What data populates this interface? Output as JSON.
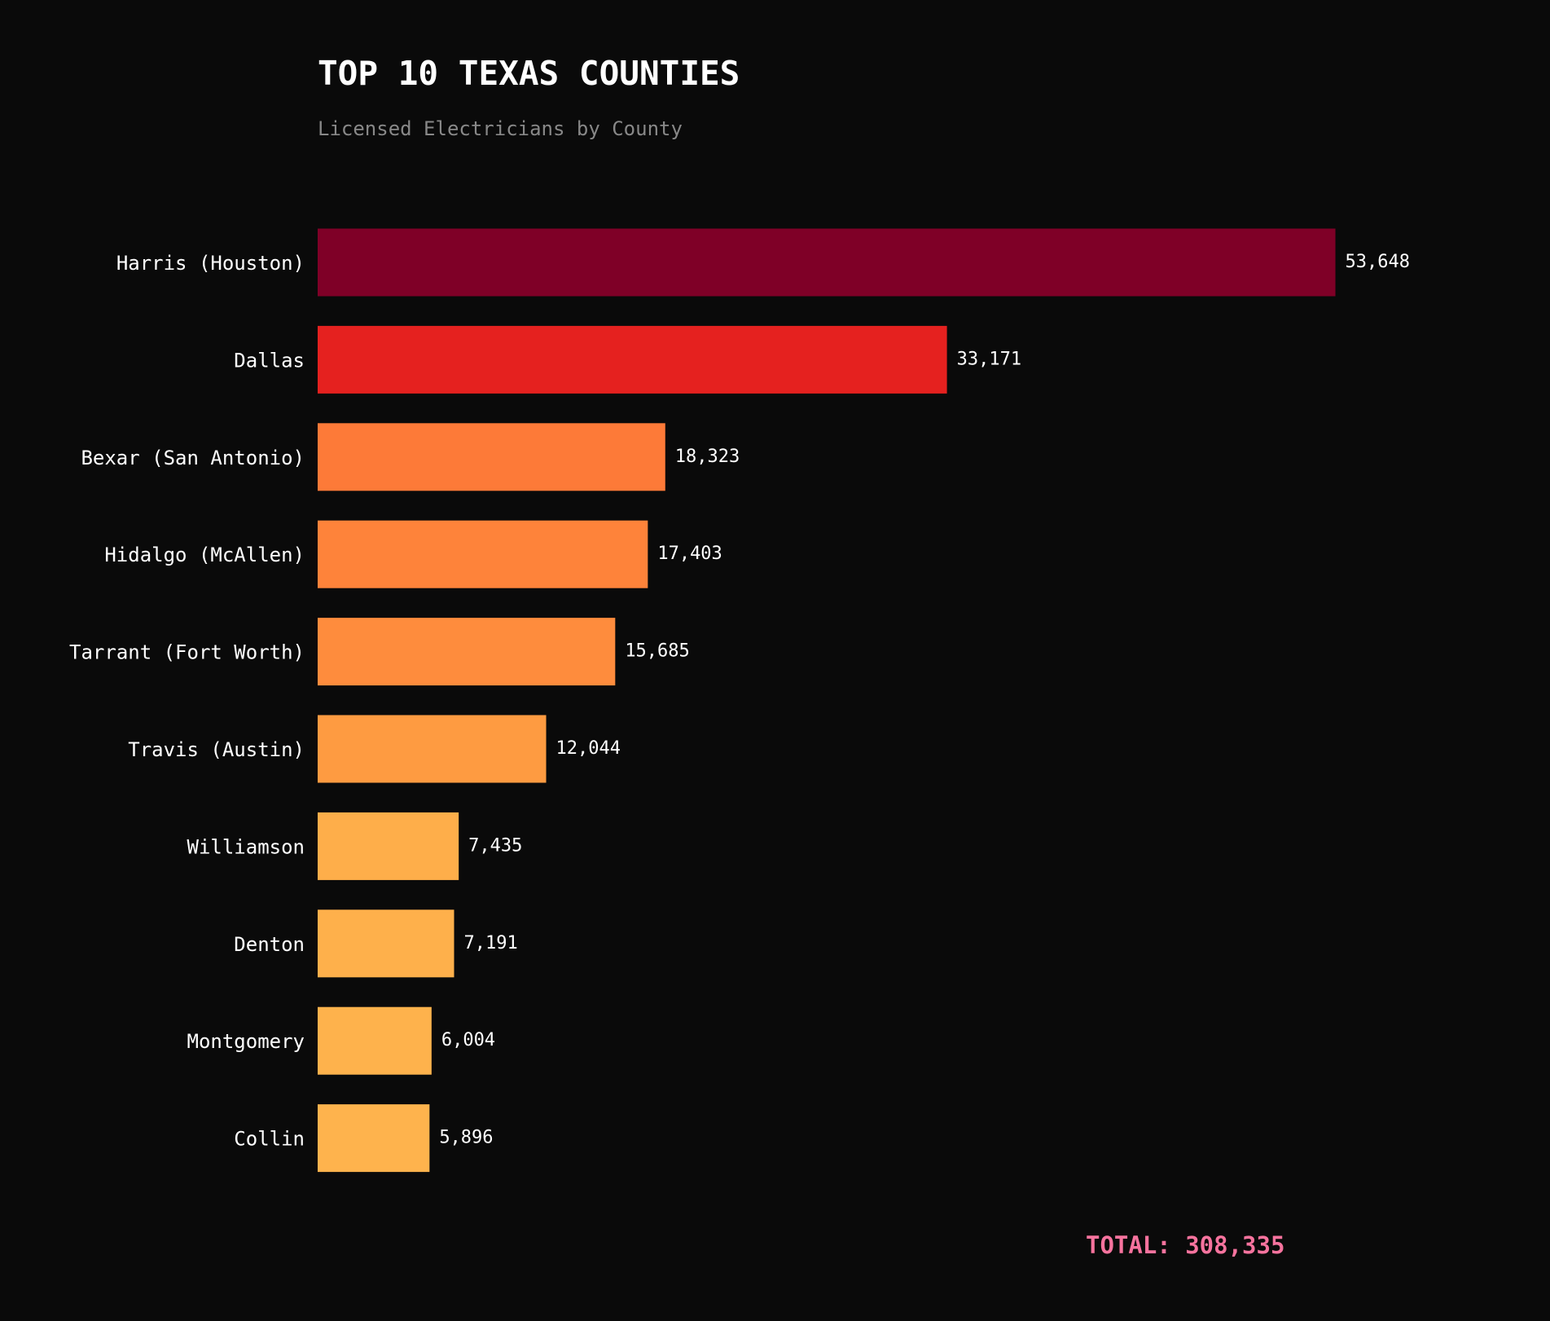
{
  "chart_data": {
    "type": "barh",
    "title": "TOP 10 TEXAS COUNTIES",
    "subtitle": "Licensed Electricians by County",
    "annotation": "TOTAL: 308,335",
    "categories": [
      "Harris (Houston)",
      "Dallas",
      "Bexar (San Antonio)",
      "Hidalgo (McAllen)",
      "Tarrant (Fort Worth)",
      "Travis (Austin)",
      "Williamson",
      "Denton",
      "Montgomery",
      "Collin"
    ],
    "values": [
      53648,
      33171,
      18323,
      17403,
      15685,
      12044,
      7435,
      7191,
      6004,
      5896
    ],
    "value_labels": [
      "53,648",
      "33,171",
      "18,323",
      "17,403",
      "15,685",
      "12,044",
      "7,435",
      "7,191",
      "6,004",
      "5,896"
    ],
    "colors": [
      "#7f0027",
      "#e5211f",
      "#fd7a38",
      "#fe833a",
      "#fe8c3d",
      "#fe9b41",
      "#feae4a",
      "#feb04b",
      "#feb24c",
      "#feb34d"
    ],
    "xlim": [
      0,
      56330
    ]
  }
}
